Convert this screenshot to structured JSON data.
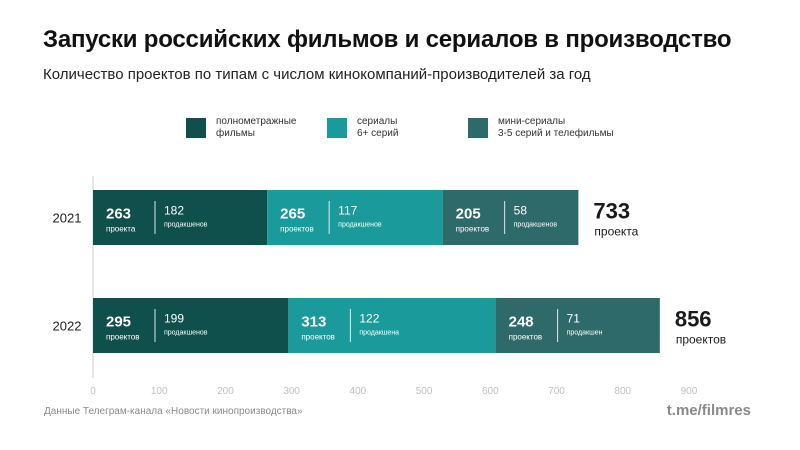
{
  "title": "Запуски российских фильмов и сериалов в производство",
  "subtitle": "Количество проектов по типам с числом кинокомпаний-производителей за год",
  "source": "Данные Телеграм-канала «Новости кинопроизводства»",
  "credit": "t.me/filmres",
  "chart_data": {
    "type": "bar",
    "orientation": "horizontal",
    "stacked": true,
    "categories": [
      "2021",
      "2022"
    ],
    "xlim": [
      0,
      900
    ],
    "xticks": [
      "0",
      "100",
      "200",
      "300",
      "400",
      "500",
      "600",
      "700",
      "800",
      "900"
    ],
    "grid": false,
    "legend_position": "top",
    "series": [
      {
        "name": "полнометражные\nфильмы",
        "color": "#0f4f4c",
        "values": [
          263,
          295
        ],
        "value_labels": [
          "проекта",
          "проектов"
        ],
        "producers": [
          182,
          199
        ],
        "producer_labels": [
          "продакшенов",
          "продакшенов"
        ]
      },
      {
        "name": "сериалы\n6+ серий",
        "color": "#1a9a9a",
        "values": [
          265,
          313
        ],
        "value_labels": [
          "проектов",
          "проектов"
        ],
        "producers": [
          117,
          122
        ],
        "producer_labels": [
          "продакшенов",
          "продакшена"
        ]
      },
      {
        "name": "мини-сериалы\n3-5 серий и телефильмы",
        "color": "#2f6a6a",
        "values": [
          205,
          248
        ],
        "value_labels": [
          "проектов",
          "проектов"
        ],
        "producers": [
          58,
          71
        ],
        "producer_labels": [
          "продакшенов",
          "продакшен"
        ]
      }
    ],
    "totals": [
      733,
      856
    ],
    "total_labels": [
      "проекта",
      "проектов"
    ]
  }
}
